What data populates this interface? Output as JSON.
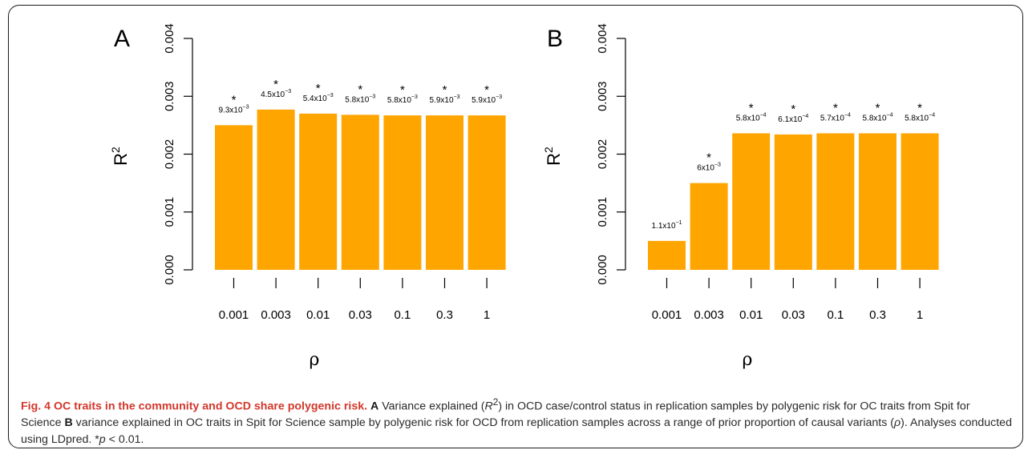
{
  "figure_label": "Fig. 4",
  "caption": {
    "title": "OC traits in the community and OCD share polygenic risk.",
    "part_a_label": "A",
    "part_a_text_1": "Variance explained (",
    "r_symbol": "R",
    "r_sup": "2",
    "part_a_text_2": ") in OCD case/control status in replication samples by polygenic risk for OC traits from Spit for Science",
    "part_b_label": "B",
    "part_b_text_1": "variance explained in OC traits in Spit for Science sample by polygenic risk for OCD from replication samples across a range of prior proportion of causal variants (",
    "rho_symbol": "ρ",
    "part_b_text_2": "). Analyses conducted using LDpred. *",
    "p_symbol": "p",
    "part_b_text_3": " < 0.01."
  },
  "chart_data": [
    {
      "type": "bar",
      "panel_label": "A",
      "categories": [
        "0.001",
        "0.003",
        "0.01",
        "0.03",
        "0.1",
        "0.3",
        "1"
      ],
      "values": [
        0.0025,
        0.00277,
        0.0027,
        0.00268,
        0.00267,
        0.00267,
        0.00267
      ],
      "significance_marks": [
        "*",
        "*",
        "*",
        "*",
        "*",
        "*",
        "*"
      ],
      "p_values": [
        {
          "mantissa": "9.3x10",
          "exponent": "−3"
        },
        {
          "mantissa": "4.5x10",
          "exponent": "−3"
        },
        {
          "mantissa": "5.4x10",
          "exponent": "−3"
        },
        {
          "mantissa": "5.8x10",
          "exponent": "−3"
        },
        {
          "mantissa": "5.8x10",
          "exponent": "−3"
        },
        {
          "mantissa": "5.9x10",
          "exponent": "−3"
        },
        {
          "mantissa": "5.9x10",
          "exponent": "−3"
        }
      ],
      "ylabel": "R",
      "ylabel_sup": "2",
      "xlabel": "ρ",
      "ylim": [
        0,
        0.004
      ],
      "yticks": [
        "0.000",
        "0.001",
        "0.002",
        "0.003",
        "0.004"
      ],
      "bar_color": "#ffa500",
      "grid": false
    },
    {
      "type": "bar",
      "panel_label": "B",
      "categories": [
        "0.001",
        "0.003",
        "0.01",
        "0.03",
        "0.1",
        "0.3",
        "1"
      ],
      "values": [
        0.0005,
        0.0015,
        0.00236,
        0.00234,
        0.00236,
        0.00236,
        0.00236
      ],
      "significance_marks": [
        "",
        "*",
        "*",
        "*",
        "*",
        "*",
        "*"
      ],
      "p_values": [
        {
          "mantissa": "1.1x10",
          "exponent": "−1"
        },
        {
          "mantissa": "6x10",
          "exponent": "−3"
        },
        {
          "mantissa": "5.8x10",
          "exponent": "−4"
        },
        {
          "mantissa": "6.1x10",
          "exponent": "−4"
        },
        {
          "mantissa": "5.7x10",
          "exponent": "−4"
        },
        {
          "mantissa": "5.8x10",
          "exponent": "−4"
        },
        {
          "mantissa": "5.8x10",
          "exponent": "−4"
        }
      ],
      "ylabel": "R",
      "ylabel_sup": "2",
      "xlabel": "ρ",
      "ylim": [
        0,
        0.004
      ],
      "yticks": [
        "0.000",
        "0.001",
        "0.002",
        "0.003",
        "0.004"
      ],
      "bar_color": "#ffa500",
      "grid": false
    }
  ]
}
